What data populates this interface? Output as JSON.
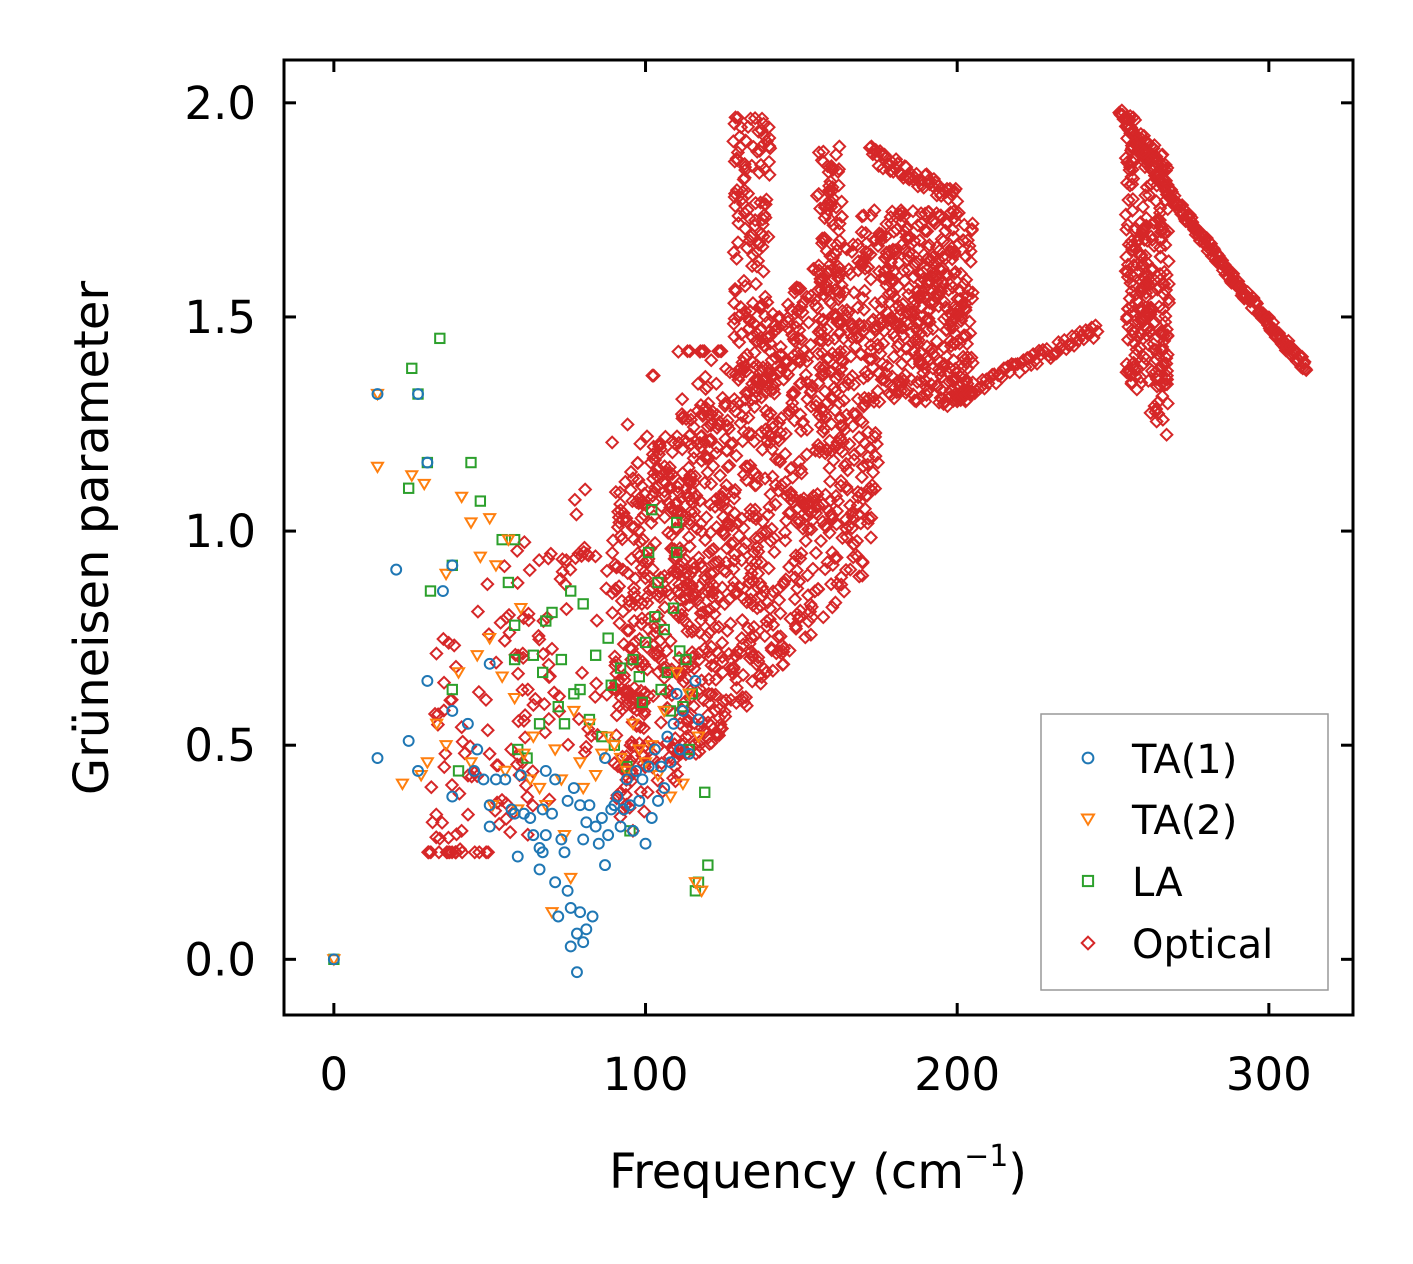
{
  "chart_data": {
    "type": "scatter",
    "xlabel": "Frequency (cm",
    "xlabel_sup": "−1",
    "xlabel_tail": ")",
    "ylabel": "Grüneisen parameter",
    "xlim": [
      -16,
      327
    ],
    "ylim": [
      -0.13,
      2.1
    ],
    "x_ticks": [
      0,
      100,
      200,
      300
    ],
    "x_tick_labels": [
      "0",
      "100",
      "200",
      "300"
    ],
    "y_ticks": [
      0.0,
      0.5,
      1.0,
      1.5,
      2.0
    ],
    "y_tick_labels": [
      "0.0",
      "0.5",
      "1.0",
      "1.5",
      "2.0"
    ],
    "legend_position": "bottom-right",
    "series": [
      {
        "name": "TA(1)",
        "marker": "circle",
        "color": "#1f77b4",
        "points": [
          [
            0,
            0.0
          ],
          [
            14,
            0.47
          ],
          [
            14,
            1.32
          ],
          [
            20,
            0.91
          ],
          [
            24,
            0.51
          ],
          [
            27,
            0.44
          ],
          [
            27,
            1.32
          ],
          [
            30,
            0.65
          ],
          [
            30,
            1.16
          ],
          [
            35,
            0.86
          ],
          [
            38,
            0.38
          ],
          [
            38,
            0.58
          ],
          [
            38,
            0.92
          ],
          [
            43,
            0.55
          ],
          [
            45,
            0.44
          ],
          [
            46,
            0.49
          ],
          [
            48,
            0.42
          ],
          [
            50,
            0.31
          ],
          [
            50,
            0.36
          ],
          [
            50,
            0.69
          ],
          [
            52,
            0.42
          ],
          [
            55,
            0.42
          ],
          [
            57,
            0.35
          ],
          [
            58,
            0.34
          ],
          [
            59,
            0.24
          ],
          [
            60,
            0.43
          ],
          [
            61,
            0.34
          ],
          [
            63,
            0.33
          ],
          [
            64,
            0.29
          ],
          [
            66,
            0.21
          ],
          [
            66,
            0.26
          ],
          [
            67,
            0.25
          ],
          [
            67,
            0.35
          ],
          [
            68,
            0.29
          ],
          [
            68,
            0.44
          ],
          [
            70,
            0.34
          ],
          [
            71,
            0.18
          ],
          [
            71,
            0.42
          ],
          [
            72,
            0.1
          ],
          [
            73,
            0.28
          ],
          [
            74,
            0.25
          ],
          [
            75,
            0.37
          ],
          [
            75,
            0.16
          ],
          [
            76,
            0.03
          ],
          [
            76,
            0.12
          ],
          [
            77,
            0.4
          ],
          [
            78,
            0.06
          ],
          [
            78,
            -0.03
          ],
          [
            79,
            0.36
          ],
          [
            79,
            0.11
          ],
          [
            80,
            0.04
          ],
          [
            80,
            0.28
          ],
          [
            81,
            0.07
          ],
          [
            81,
            0.32
          ],
          [
            82,
            0.36
          ],
          [
            83,
            0.1
          ],
          [
            84,
            0.31
          ],
          [
            85,
            0.27
          ],
          [
            86,
            0.33
          ],
          [
            87,
            0.22
          ],
          [
            87,
            0.47
          ],
          [
            88,
            0.29
          ],
          [
            89,
            0.35
          ],
          [
            90,
            0.36
          ],
          [
            91,
            0.38
          ],
          [
            92,
            0.31
          ],
          [
            93,
            0.35
          ],
          [
            94,
            0.42
          ],
          [
            95,
            0.36
          ],
          [
            96,
            0.3
          ],
          [
            97,
            0.44
          ],
          [
            98,
            0.37
          ],
          [
            99,
            0.42
          ],
          [
            100,
            0.27
          ],
          [
            101,
            0.45
          ],
          [
            102,
            0.33
          ],
          [
            103,
            0.49
          ],
          [
            104,
            0.37
          ],
          [
            105,
            0.45
          ],
          [
            106,
            0.4
          ],
          [
            107,
            0.52
          ],
          [
            108,
            0.46
          ],
          [
            109,
            0.55
          ],
          [
            110,
            0.62
          ],
          [
            111,
            0.49
          ],
          [
            112,
            0.58
          ],
          [
            114,
            0.48
          ],
          [
            116,
            0.65
          ],
          [
            117,
            0.56
          ]
        ]
      },
      {
        "name": "TA(2)",
        "marker": "triangle-down",
        "color": "#ff7f0e",
        "points": [
          [
            0,
            0.0
          ],
          [
            14,
            1.32
          ],
          [
            14,
            1.15
          ],
          [
            22,
            0.41
          ],
          [
            25,
            1.13
          ],
          [
            28,
            0.43
          ],
          [
            29,
            1.11
          ],
          [
            30,
            0.46
          ],
          [
            33,
            0.55
          ],
          [
            36,
            0.5
          ],
          [
            36,
            0.9
          ],
          [
            40,
            0.67
          ],
          [
            41,
            1.08
          ],
          [
            44,
            0.46
          ],
          [
            44,
            1.02
          ],
          [
            46,
            0.71
          ],
          [
            47,
            0.94
          ],
          [
            50,
            0.75
          ],
          [
            50,
            1.03
          ],
          [
            51,
            0.36
          ],
          [
            52,
            0.92
          ],
          [
            54,
            0.66
          ],
          [
            55,
            0.44
          ],
          [
            56,
            0.98
          ],
          [
            58,
            0.61
          ],
          [
            59,
            0.35
          ],
          [
            60,
            0.82
          ],
          [
            61,
            0.48
          ],
          [
            63,
            0.42
          ],
          [
            64,
            0.52
          ],
          [
            66,
            0.4
          ],
          [
            68,
            0.36
          ],
          [
            70,
            0.11
          ],
          [
            71,
            0.49
          ],
          [
            73,
            0.42
          ],
          [
            74,
            0.29
          ],
          [
            76,
            0.19
          ],
          [
            77,
            0.58
          ],
          [
            79,
            0.46
          ],
          [
            80,
            0.4
          ],
          [
            82,
            0.55
          ],
          [
            84,
            0.43
          ],
          [
            86,
            0.48
          ],
          [
            88,
            0.52
          ],
          [
            90,
            0.5
          ],
          [
            92,
            0.47
          ],
          [
            94,
            0.44
          ],
          [
            96,
            0.55
          ],
          [
            98,
            0.49
          ],
          [
            100,
            0.46
          ],
          [
            102,
            0.5
          ],
          [
            104,
            0.43
          ],
          [
            106,
            0.58
          ],
          [
            108,
            0.38
          ],
          [
            110,
            0.67
          ],
          [
            112,
            0.41
          ],
          [
            114,
            0.62
          ],
          [
            116,
            0.18
          ],
          [
            117,
            0.52
          ],
          [
            118,
            0.16
          ]
        ]
      },
      {
        "name": "LA",
        "marker": "square",
        "color": "#2ca02c",
        "points": [
          [
            0,
            0.0
          ],
          [
            24,
            1.1
          ],
          [
            25,
            1.38
          ],
          [
            27,
            1.32
          ],
          [
            30,
            1.16
          ],
          [
            31,
            0.86
          ],
          [
            34,
            1.45
          ],
          [
            38,
            0.92
          ],
          [
            38,
            0.63
          ],
          [
            40,
            0.44
          ],
          [
            44,
            1.16
          ],
          [
            47,
            1.07
          ],
          [
            54,
            0.98
          ],
          [
            56,
            0.88
          ],
          [
            58,
            0.98
          ],
          [
            58,
            0.78
          ],
          [
            58,
            0.7
          ],
          [
            59,
            0.49
          ],
          [
            62,
            0.47
          ],
          [
            64,
            0.71
          ],
          [
            66,
            0.55
          ],
          [
            67,
            0.67
          ],
          [
            68,
            0.79
          ],
          [
            70,
            0.81
          ],
          [
            72,
            0.59
          ],
          [
            73,
            0.7
          ],
          [
            74,
            0.55
          ],
          [
            76,
            0.86
          ],
          [
            77,
            0.62
          ],
          [
            79,
            0.63
          ],
          [
            80,
            0.83
          ],
          [
            82,
            0.56
          ],
          [
            84,
            0.71
          ],
          [
            86,
            0.52
          ],
          [
            88,
            0.75
          ],
          [
            89,
            0.64
          ],
          [
            90,
            0.5
          ],
          [
            92,
            0.68
          ],
          [
            94,
            0.45
          ],
          [
            95,
            0.3
          ],
          [
            96,
            0.7
          ],
          [
            98,
            0.66
          ],
          [
            99,
            0.6
          ],
          [
            100,
            0.74
          ],
          [
            101,
            0.95
          ],
          [
            102,
            1.05
          ],
          [
            103,
            0.8
          ],
          [
            104,
            0.88
          ],
          [
            105,
            0.63
          ],
          [
            106,
            0.77
          ],
          [
            107,
            0.67
          ],
          [
            108,
            0.58
          ],
          [
            109,
            0.82
          ],
          [
            110,
            0.95
          ],
          [
            110,
            1.02
          ],
          [
            111,
            0.72
          ],
          [
            112,
            0.59
          ],
          [
            113,
            0.7
          ],
          [
            114,
            0.49
          ],
          [
            115,
            0.62
          ],
          [
            116,
            0.16
          ],
          [
            117,
            0.18
          ],
          [
            119,
            0.39
          ],
          [
            120,
            0.22
          ]
        ]
      },
      {
        "name": "Optical",
        "marker": "diamond",
        "color": "#d62728",
        "points": []
      }
    ]
  },
  "legend": {
    "items": [
      {
        "label": "TA(1)",
        "marker": "circle",
        "color": "#1f77b4"
      },
      {
        "label": "TA(2)",
        "marker": "triangle-down",
        "color": "#ff7f0e"
      },
      {
        "label": "LA",
        "marker": "square",
        "color": "#2ca02c"
      },
      {
        "label": "Optical",
        "marker": "diamond",
        "color": "#d62728"
      }
    ]
  }
}
